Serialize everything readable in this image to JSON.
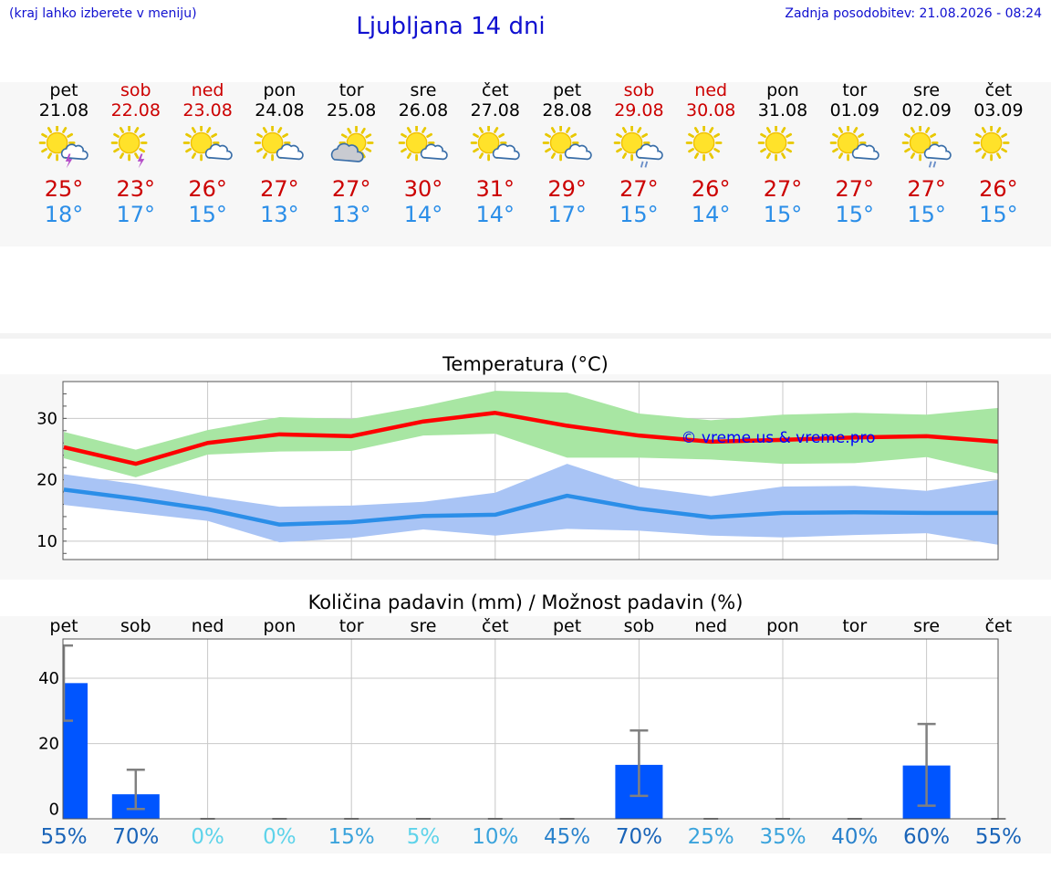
{
  "header": {
    "menu_note": "(kraj lahko izberete v meniju)",
    "title": "Ljubljana 14 dni",
    "updated": "Zadnja posodobitev: 21.08.2026 - 08:24"
  },
  "days": [
    {
      "name": "pet",
      "date": "21.08",
      "weekend": false,
      "icon": "sun-cloud-thunder-icon",
      "max": "25°",
      "min": "18°"
    },
    {
      "name": "sob",
      "date": "22.08",
      "weekend": true,
      "icon": "sun-thunder-icon",
      "max": "23°",
      "min": "17°"
    },
    {
      "name": "ned",
      "date": "23.08",
      "weekend": true,
      "icon": "sun-cloud-icon",
      "max": "26°",
      "min": "15°"
    },
    {
      "name": "pon",
      "date": "24.08",
      "weekend": false,
      "icon": "sun-cloud-icon",
      "max": "27°",
      "min": "13°"
    },
    {
      "name": "tor",
      "date": "25.08",
      "weekend": false,
      "icon": "cloud-sun-icon",
      "max": "27°",
      "min": "13°"
    },
    {
      "name": "sre",
      "date": "26.08",
      "weekend": false,
      "icon": "sun-cloud-icon",
      "max": "30°",
      "min": "14°"
    },
    {
      "name": "čet",
      "date": "27.08",
      "weekend": false,
      "icon": "sun-cloud-icon",
      "max": "31°",
      "min": "14°"
    },
    {
      "name": "pet",
      "date": "28.08",
      "weekend": false,
      "icon": "sun-cloud-icon",
      "max": "29°",
      "min": "17°"
    },
    {
      "name": "sob",
      "date": "29.08",
      "weekend": true,
      "icon": "sun-cloud-rain-icon",
      "max": "27°",
      "min": "15°"
    },
    {
      "name": "ned",
      "date": "30.08",
      "weekend": true,
      "icon": "sun-icon",
      "max": "26°",
      "min": "14°"
    },
    {
      "name": "pon",
      "date": "31.08",
      "weekend": false,
      "icon": "sun-icon",
      "max": "27°",
      "min": "15°"
    },
    {
      "name": "tor",
      "date": "01.09",
      "weekend": false,
      "icon": "sun-cloud-icon",
      "max": "27°",
      "min": "15°"
    },
    {
      "name": "sre",
      "date": "02.09",
      "weekend": false,
      "icon": "sun-cloud-rain-icon",
      "max": "27°",
      "min": "15°"
    },
    {
      "name": "čet",
      "date": "03.09",
      "weekend": false,
      "icon": "sun-icon",
      "max": "26°",
      "min": "15°"
    }
  ],
  "chart_data": [
    {
      "type": "line",
      "title": "Temperatura (°C)",
      "watermark": "© vreme.us & vreme.pro",
      "ylim": [
        7,
        36
      ],
      "yticks": [
        10,
        20,
        30
      ],
      "grid": true,
      "x": [
        "pet",
        "sob",
        "ned",
        "pon",
        "tor",
        "sre",
        "čet",
        "pet",
        "sob",
        "ned",
        "pon",
        "tor",
        "sre",
        "čet"
      ],
      "series": [
        {
          "key": "max",
          "color": "#ff0000",
          "band_color": "#a8e6a3",
          "values": [
            25.3,
            22.6,
            26.0,
            27.4,
            27.1,
            29.5,
            30.9,
            28.8,
            27.2,
            26.2,
            26.5,
            26.9,
            27.1,
            26.2
          ],
          "band_low": [
            23.5,
            20.4,
            24.1,
            24.6,
            24.7,
            27.2,
            27.5,
            23.6,
            23.6,
            23.3,
            22.6,
            22.7,
            23.7,
            21.0
          ],
          "band_high": [
            27.8,
            24.9,
            28.1,
            30.2,
            29.9,
            32.0,
            34.5,
            34.2,
            30.8,
            29.7,
            30.6,
            30.9,
            30.6,
            31.7
          ]
        },
        {
          "key": "min",
          "color": "#2b8ee8",
          "band_color": "#a9c4f5",
          "values": [
            18.4,
            16.9,
            15.2,
            12.7,
            13.1,
            14.1,
            14.3,
            17.4,
            15.3,
            13.9,
            14.6,
            14.7,
            14.6,
            14.6
          ],
          "band_low": [
            15.9,
            14.6,
            13.3,
            9.8,
            10.5,
            11.9,
            10.9,
            12.0,
            11.7,
            10.9,
            10.6,
            11.0,
            11.3,
            9.4
          ],
          "band_high": [
            20.9,
            19.3,
            17.3,
            15.6,
            15.8,
            16.4,
            17.9,
            22.6,
            18.8,
            17.3,
            18.9,
            19.0,
            18.2,
            20.0
          ]
        }
      ]
    },
    {
      "type": "bar",
      "title": "Količina padavin (mm) / Možnost padavin (%)",
      "ylim": [
        -3,
        52
      ],
      "yticks": [
        0,
        20,
        40
      ],
      "grid": true,
      "categories": [
        "pet",
        "sob",
        "ned",
        "pon",
        "tor",
        "sre",
        "čet",
        "pet",
        "sob",
        "ned",
        "pon",
        "tor",
        "sre",
        "čet"
      ],
      "values": [
        38.5,
        4.5,
        0,
        0,
        0,
        0,
        0,
        0,
        13.5,
        0,
        0,
        0,
        13.3,
        0
      ],
      "error_low": [
        27,
        0,
        0,
        0,
        0,
        0,
        0,
        0,
        4,
        0,
        0,
        0,
        1,
        0
      ],
      "error_high": [
        50,
        12,
        0,
        0,
        0,
        0,
        0,
        0,
        24,
        0,
        0,
        0,
        26,
        0
      ],
      "bar_color": "#0055ff",
      "error_color": "#808080",
      "probability": [
        "55%",
        "70%",
        "0%",
        "0%",
        "15%",
        "5%",
        "10%",
        "45%",
        "70%",
        "25%",
        "35%",
        "40%",
        "60%",
        "55%"
      ],
      "probability_colors": [
        "#1a64b8",
        "#1a64b8",
        "#5ed3ea",
        "#5ed3ea",
        "#3aa3dc",
        "#5ed3ea",
        "#3aa3dc",
        "#2a82cc",
        "#1a64b8",
        "#3aa3dc",
        "#3aa3dc",
        "#2a82cc",
        "#1a64b8",
        "#1a64b8"
      ]
    }
  ],
  "colors": {
    "link_blue": "#1010d0",
    "weekend_red": "#cc0000",
    "max_red": "#cc0000",
    "min_blue": "#2b8ee8"
  }
}
